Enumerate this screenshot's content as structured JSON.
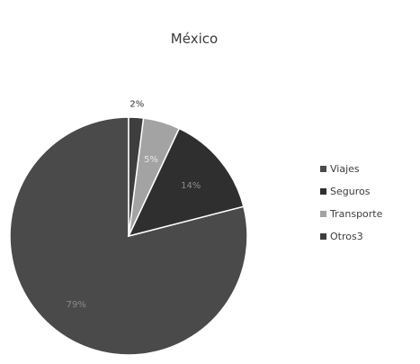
{
  "chart_data": {
    "type": "pie",
    "title": "México",
    "categories": [
      "Viajes",
      "Seguros",
      "Transporte",
      "Otros3"
    ],
    "values": [
      79,
      14,
      5,
      2
    ],
    "data_labels": [
      "79%",
      "14%",
      "5%",
      "2%"
    ],
    "colors": [
      "#4a4a4a",
      "#2f2f2f",
      "#a3a3a3",
      "#3e3e3e"
    ],
    "start_angle_deg": 0,
    "direction": "counterclockwise",
    "legend_placement": "right"
  }
}
